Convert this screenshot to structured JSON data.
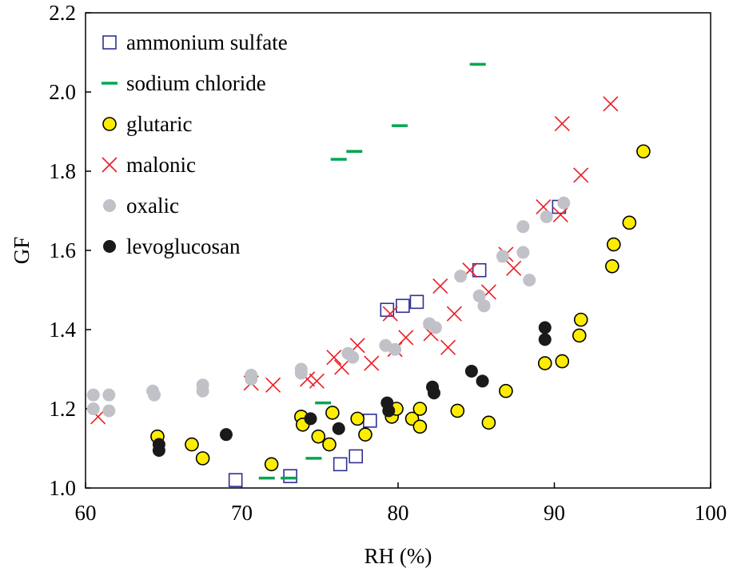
{
  "chart_data": {
    "type": "scatter",
    "title": "",
    "xlabel": "RH (%)",
    "ylabel": "GF",
    "xlim": [
      60,
      100
    ],
    "ylim": [
      1.0,
      2.2
    ],
    "x_ticks": [
      "60",
      "70",
      "80",
      "90",
      "100"
    ],
    "y_ticks": [
      "1.0",
      "1.2",
      "1.4",
      "1.6",
      "1.8",
      "2.0",
      "2.2"
    ],
    "grid": false,
    "legend_position": "top-left",
    "series": [
      {
        "name": "ammonium sulfate",
        "marker": "open-square",
        "color": "#2e3192",
        "points": [
          [
            69.6,
            1.02
          ],
          [
            73.1,
            1.03
          ],
          [
            76.3,
            1.06
          ],
          [
            77.3,
            1.08
          ],
          [
            78.2,
            1.17
          ],
          [
            79.3,
            1.45
          ],
          [
            80.3,
            1.46
          ],
          [
            81.2,
            1.47
          ],
          [
            85.2,
            1.55
          ],
          [
            90.3,
            1.71
          ]
        ]
      },
      {
        "name": "sodium chloride",
        "marker": "dash",
        "color": "#00a651",
        "points": [
          [
            71.6,
            1.025
          ],
          [
            73.0,
            1.025
          ],
          [
            74.6,
            1.075
          ],
          [
            75.2,
            1.215
          ],
          [
            76.2,
            1.83
          ],
          [
            77.2,
            1.85
          ],
          [
            80.1,
            1.915
          ],
          [
            85.1,
            2.07
          ]
        ]
      },
      {
        "name": "glutaric",
        "marker": "filled-circle-outline",
        "color": "#ffed00",
        "points": [
          [
            64.6,
            1.13
          ],
          [
            66.8,
            1.11
          ],
          [
            67.5,
            1.075
          ],
          [
            71.9,
            1.06
          ],
          [
            73.8,
            1.18
          ],
          [
            73.9,
            1.16
          ],
          [
            74.9,
            1.13
          ],
          [
            75.6,
            1.11
          ],
          [
            75.8,
            1.19
          ],
          [
            77.4,
            1.175
          ],
          [
            77.9,
            1.135
          ],
          [
            79.6,
            1.18
          ],
          [
            79.9,
            1.2
          ],
          [
            80.9,
            1.175
          ],
          [
            81.4,
            1.2
          ],
          [
            81.4,
            1.155
          ],
          [
            83.8,
            1.195
          ],
          [
            85.8,
            1.165
          ],
          [
            86.9,
            1.245
          ],
          [
            89.4,
            1.315
          ],
          [
            90.5,
            1.32
          ],
          [
            91.6,
            1.385
          ],
          [
            91.7,
            1.425
          ],
          [
            93.7,
            1.56
          ],
          [
            93.8,
            1.615
          ],
          [
            94.8,
            1.67
          ],
          [
            95.7,
            1.85
          ]
        ]
      },
      {
        "name": "malonic",
        "marker": "x",
        "color": "#ed1c24",
        "points": [
          [
            60.8,
            1.18
          ],
          [
            70.6,
            1.265
          ],
          [
            72.0,
            1.26
          ],
          [
            74.2,
            1.275
          ],
          [
            74.8,
            1.27
          ],
          [
            75.9,
            1.33
          ],
          [
            76.4,
            1.305
          ],
          [
            77.4,
            1.36
          ],
          [
            78.3,
            1.315
          ],
          [
            79.5,
            1.44
          ],
          [
            79.8,
            1.35
          ],
          [
            80.5,
            1.38
          ],
          [
            82.1,
            1.39
          ],
          [
            82.7,
            1.51
          ],
          [
            83.2,
            1.355
          ],
          [
            83.6,
            1.44
          ],
          [
            84.6,
            1.55
          ],
          [
            85.8,
            1.495
          ],
          [
            86.9,
            1.59
          ],
          [
            87.4,
            1.555
          ],
          [
            89.3,
            1.71
          ],
          [
            90.4,
            1.69
          ],
          [
            90.5,
            1.92
          ],
          [
            91.7,
            1.79
          ],
          [
            93.6,
            1.97
          ]
        ]
      },
      {
        "name": "oxalic",
        "marker": "filled-circle",
        "color": "#c0c2c8",
        "points": [
          [
            60.5,
            1.235
          ],
          [
            60.5,
            1.2
          ],
          [
            61.5,
            1.235
          ],
          [
            61.5,
            1.195
          ],
          [
            64.3,
            1.245
          ],
          [
            64.4,
            1.235
          ],
          [
            67.5,
            1.26
          ],
          [
            67.5,
            1.245
          ],
          [
            70.6,
            1.285
          ],
          [
            70.6,
            1.275
          ],
          [
            73.8,
            1.3
          ],
          [
            73.8,
            1.29
          ],
          [
            76.8,
            1.34
          ],
          [
            77.1,
            1.33
          ],
          [
            79.2,
            1.36
          ],
          [
            79.8,
            1.35
          ],
          [
            82.0,
            1.415
          ],
          [
            82.4,
            1.405
          ],
          [
            84.0,
            1.535
          ],
          [
            85.2,
            1.485
          ],
          [
            85.5,
            1.46
          ],
          [
            86.7,
            1.585
          ],
          [
            88.0,
            1.66
          ],
          [
            88.0,
            1.595
          ],
          [
            88.4,
            1.525
          ],
          [
            89.5,
            1.685
          ],
          [
            90.6,
            1.72
          ]
        ]
      },
      {
        "name": "levoglucosan",
        "marker": "filled-circle",
        "color": "#1a1a1a",
        "points": [
          [
            64.7,
            1.11
          ],
          [
            64.7,
            1.095
          ],
          [
            69.0,
            1.135
          ],
          [
            74.4,
            1.175
          ],
          [
            76.2,
            1.15
          ],
          [
            79.3,
            1.215
          ],
          [
            79.4,
            1.195
          ],
          [
            82.2,
            1.255
          ],
          [
            82.3,
            1.24
          ],
          [
            84.7,
            1.295
          ],
          [
            85.4,
            1.27
          ],
          [
            89.4,
            1.405
          ],
          [
            89.4,
            1.375
          ]
        ]
      }
    ]
  }
}
